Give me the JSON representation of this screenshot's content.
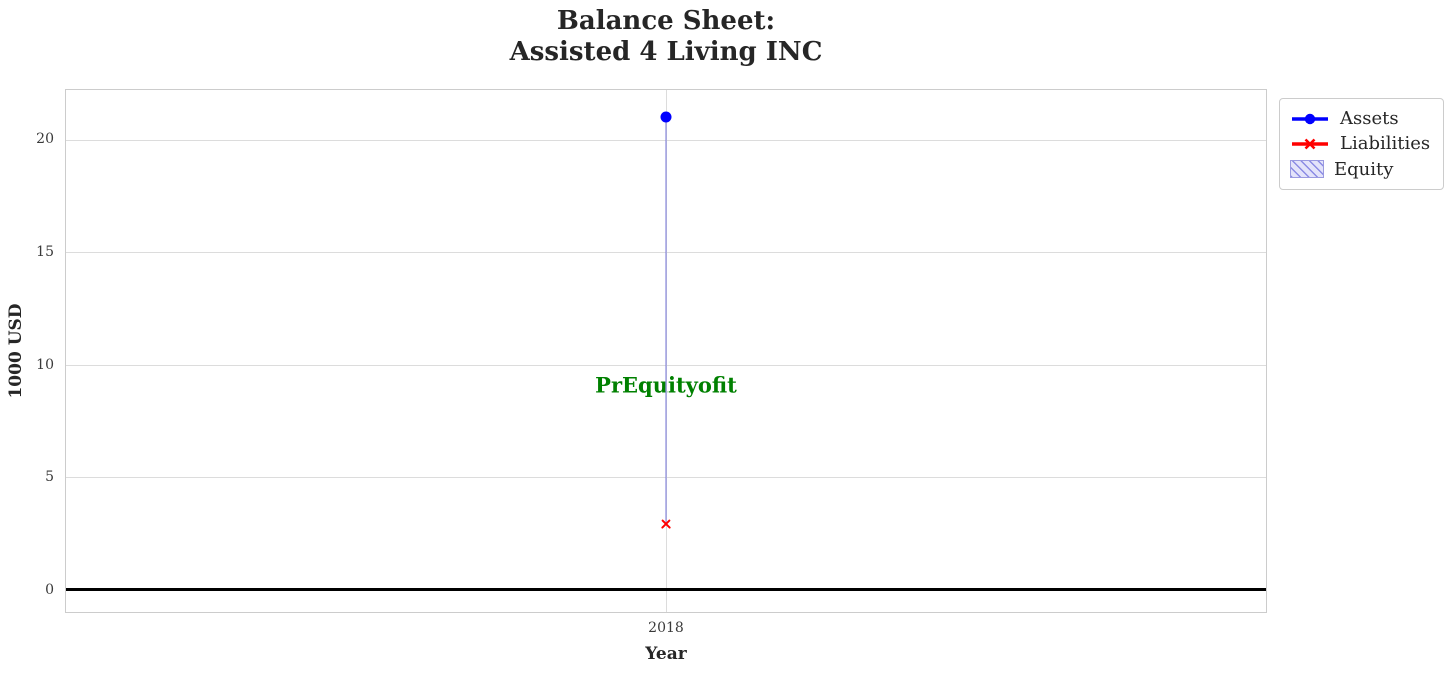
{
  "title": {
    "line1": "Balance Sheet:",
    "line2": "Assisted 4 Living INC"
  },
  "axes": {
    "xlabel": "Year",
    "ylabel": "1000 USD"
  },
  "chart_data": {
    "type": "scatter",
    "title": "Balance Sheet:\nAssisted 4 Living INC",
    "xlabel": "Year",
    "ylabel": "1000 USD",
    "x": [
      2018
    ],
    "xlim": [
      2017.5,
      2018.5
    ],
    "ylim": [
      -1.0,
      22.2
    ],
    "xticks": [
      2018
    ],
    "xticklabels": [
      "2018"
    ],
    "yticks": [
      0,
      5,
      10,
      15,
      20
    ],
    "grid": true,
    "legend_position": "outside-upper-right",
    "series": [
      {
        "name": "Assets",
        "values": [
          21.0
        ],
        "color": "#0000ff",
        "marker": "circle"
      },
      {
        "name": "Liabilities",
        "values": [
          2.9
        ],
        "color": "#ff0000",
        "marker": "x"
      },
      {
        "name": "Equity",
        "values": [
          18.1
        ],
        "color": "#ccccf5",
        "hatch_color": "#6464dc",
        "style": "hatched-area"
      }
    ],
    "equity_band": {
      "x": 2018,
      "y_from": 2.9,
      "y_to": 21.0
    },
    "annotation": {
      "text": "PrEquityofit",
      "x": 2018,
      "y": 9.1,
      "color": "#008000"
    },
    "zero_line": {
      "y": 0,
      "color": "#000000"
    }
  },
  "legend": {
    "items": [
      {
        "label": "Assets"
      },
      {
        "label": "Liabilities"
      },
      {
        "label": "Equity"
      }
    ]
  },
  "colors": {
    "assets": "#0000ff",
    "liabilities": "#ff0000",
    "equity_fill": "#ccccf5",
    "equity_hatch": "#6464dc",
    "annotation": "#008000",
    "grid": "#dcdcdc",
    "spine": "#cccccc",
    "text": "#262626"
  }
}
